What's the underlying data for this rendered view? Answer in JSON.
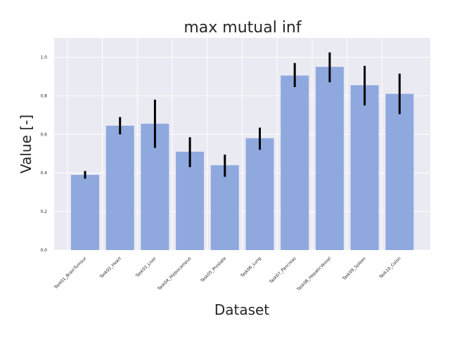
{
  "chart_data": {
    "type": "bar",
    "title": "max mutual inf",
    "xlabel": "Dataset",
    "ylabel": "Value [-]",
    "ylim": [
      0.0,
      1.1
    ],
    "yticks": [
      "0.0",
      "0.2",
      "0.4",
      "0.6",
      "0.8",
      "1.0"
    ],
    "grid": true,
    "legend": "none",
    "categories": [
      "Task01_BrainTumour",
      "Task02_Heart",
      "Task03_Liver",
      "Task04_Hippocampus",
      "Task05_Prostate",
      "Task06_Lung",
      "Task07_Pancreas",
      "Task08_HepaticVessel",
      "Task09_Spleen",
      "Task10_Colon"
    ],
    "values": [
      0.39,
      0.645,
      0.655,
      0.51,
      0.44,
      0.58,
      0.905,
      0.95,
      0.855,
      0.81
    ],
    "error_low": [
      0.37,
      0.6,
      0.53,
      0.43,
      0.38,
      0.52,
      0.845,
      0.87,
      0.75,
      0.705
    ],
    "error_high": [
      0.41,
      0.69,
      0.78,
      0.585,
      0.495,
      0.635,
      0.97,
      1.025,
      0.955,
      0.915
    ],
    "colors": {
      "bar": "#8fa9df",
      "error_bar": "#000000",
      "plot_background": "#eaeaf2",
      "grid": "#ffffff",
      "text": "#262626"
    }
  }
}
